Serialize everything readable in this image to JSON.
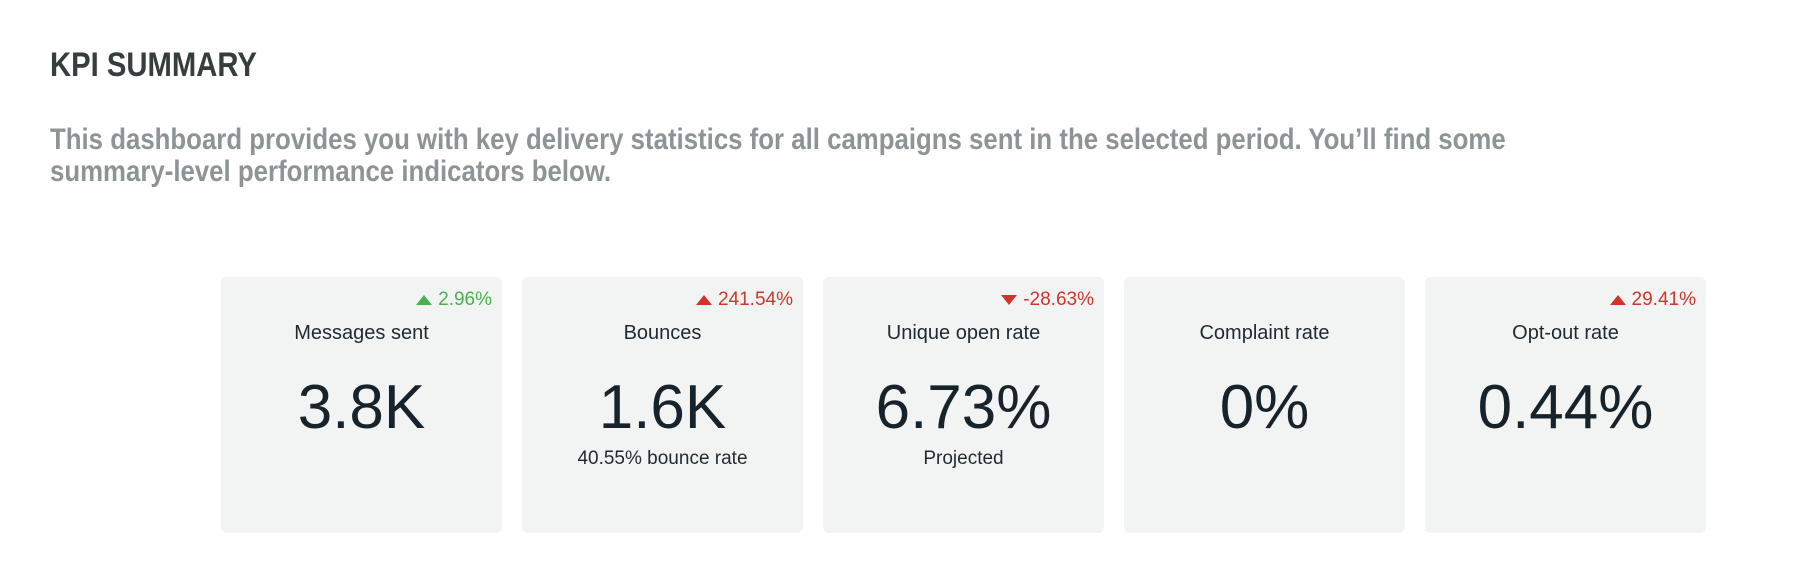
{
  "header": {
    "title": "KPI SUMMARY",
    "description": "This dashboard provides you with key delivery statistics for all campaigns sent in the selected period. You’ll find some summary-level performance indicators below."
  },
  "colors": {
    "positive": "#4caf50",
    "negative": "#d0352b",
    "card_background": "#f2f3f3"
  },
  "cards": [
    {
      "label": "Messages sent",
      "value": "3.8K",
      "change": "2.96%",
      "direction": "up",
      "tone": "positive",
      "sub": ""
    },
    {
      "label": "Bounces",
      "value": "1.6K",
      "change": "241.54%",
      "direction": "up",
      "tone": "negative",
      "sub": "40.55% bounce rate"
    },
    {
      "label": "Unique open rate",
      "value": "6.73%",
      "change": "-28.63%",
      "direction": "down",
      "tone": "negative",
      "sub": "Projected"
    },
    {
      "label": "Complaint rate",
      "value": "0%",
      "change": "",
      "direction": "",
      "tone": "",
      "sub": ""
    },
    {
      "label": "Opt-out rate",
      "value": "0.44%",
      "change": "29.41%",
      "direction": "up",
      "tone": "negative",
      "sub": ""
    }
  ]
}
